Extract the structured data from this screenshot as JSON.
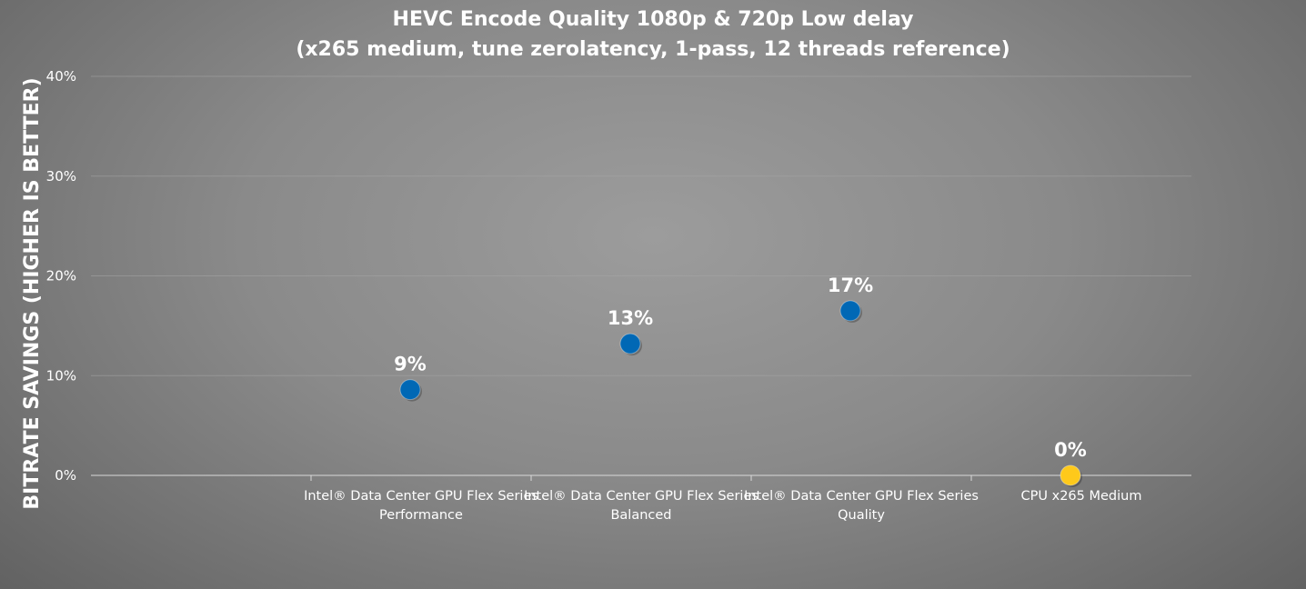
{
  "chart_data": {
    "type": "scatter",
    "title": "HEVC Encode Quality 1080p & 720p Low delay",
    "subtitle": "(x265 medium, tune zerolatency, 1-pass, 12 threads reference)",
    "xlabel": "",
    "ylabel": "BITRATE SAVINGS (HIGHER IS BETTER)",
    "ylim": [
      0,
      40
    ],
    "yticks": [
      "0%",
      "10%",
      "20%",
      "30%",
      "40%"
    ],
    "ytick_values": [
      0,
      10,
      20,
      30,
      40
    ],
    "grid": true,
    "legend": "none",
    "categories": [
      [
        "Intel® Data Center GPU Flex Series",
        "Performance"
      ],
      [
        "Intel® Data Center GPU Flex Series",
        "Balanced"
      ],
      [
        "Intel® Data Center GPU Flex Series",
        "Quality"
      ],
      [
        "CPU x265 Medium"
      ]
    ],
    "points": [
      {
        "category_index": 0,
        "value": 8.6,
        "label": "9%",
        "color": "#0068b5"
      },
      {
        "category_index": 1,
        "value": 13.2,
        "label": "13%",
        "color": "#0068b5"
      },
      {
        "category_index": 2,
        "value": 16.5,
        "label": "17%",
        "color": "#0068b5"
      },
      {
        "category_index": 3,
        "value": 0,
        "label": "0%",
        "color": "#fec91b"
      }
    ],
    "colors": {
      "gpu_marker": "#0068b5",
      "cpu_marker": "#fec91b",
      "text": "#ffffff"
    }
  }
}
